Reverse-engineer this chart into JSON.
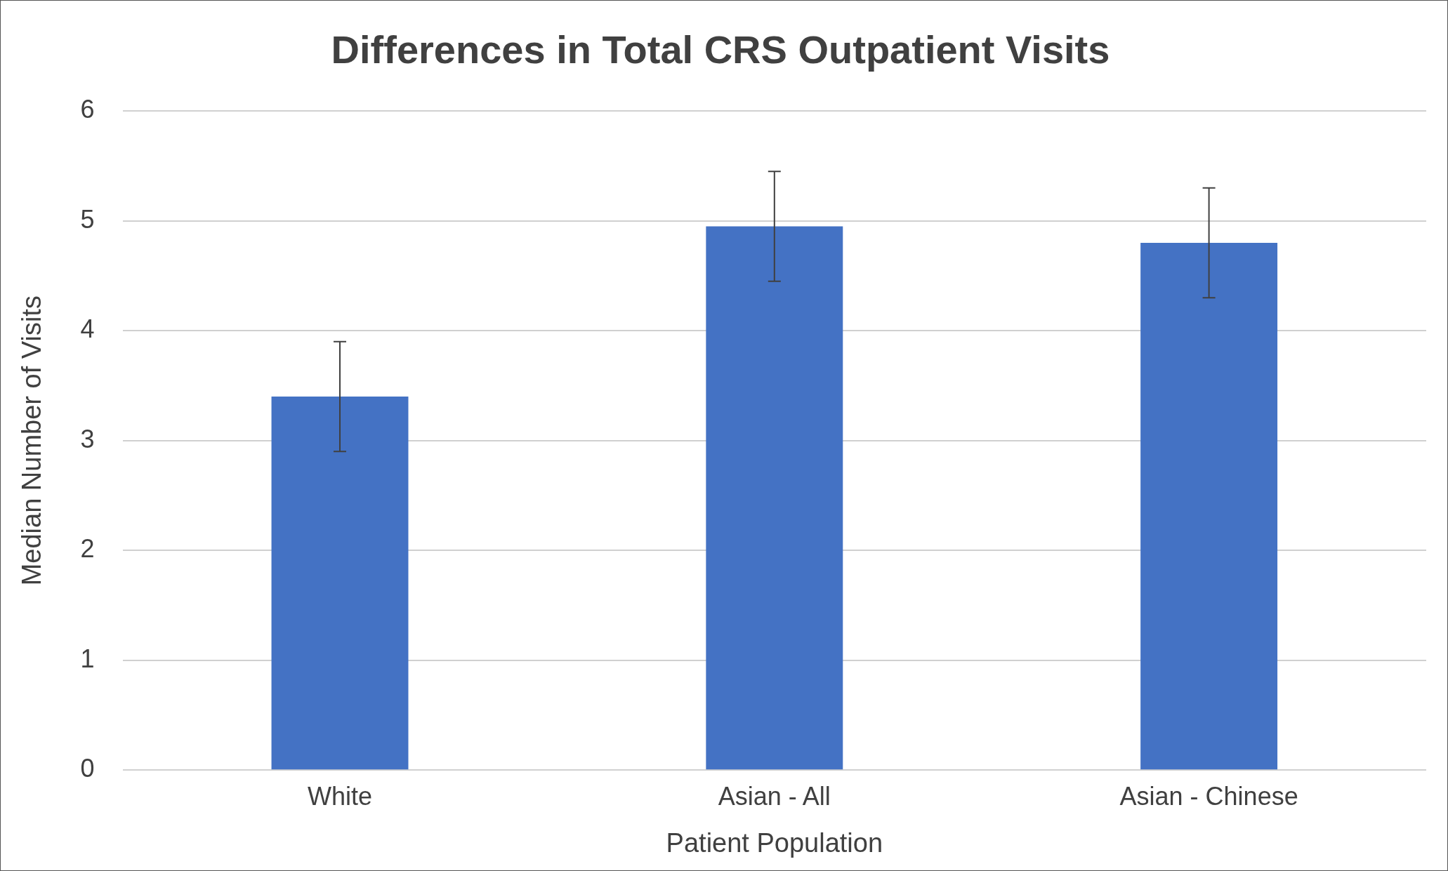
{
  "chart_data": {
    "type": "bar",
    "title": "Differences in Total CRS Outpatient Visits",
    "xlabel": "Patient Population",
    "ylabel": "Median Number of Visits",
    "categories": [
      "White",
      "Asian - All",
      "Asian - Chinese"
    ],
    "values": [
      3.4,
      4.95,
      4.8
    ],
    "errors": [
      0.5,
      0.5,
      0.5
    ],
    "color": "#4472c4",
    "ylim": [
      0,
      6
    ],
    "yticks": [
      0,
      1,
      2,
      3,
      4,
      5,
      6
    ],
    "grid": "y"
  }
}
